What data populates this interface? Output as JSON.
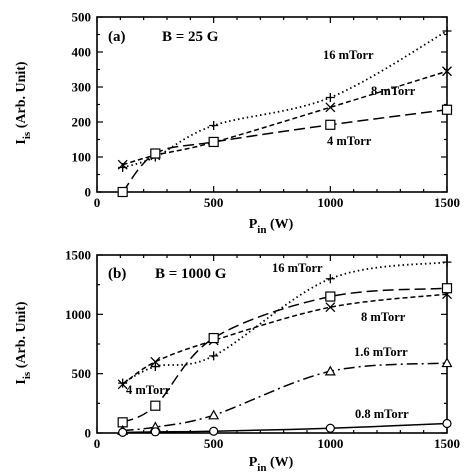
{
  "chart_data": [
    {
      "type": "line",
      "panel_label": "(a)",
      "field_label": "B = 25 G",
      "xlabel_main": "P",
      "xlabel_sub": "in",
      "xlabel_unit": " (W)",
      "ylabel_main": "I",
      "ylabel_sub": "is",
      "ylabel_unit": " (Arb. Unit)",
      "xlim": [
        0,
        1500
      ],
      "ylim": [
        0,
        500
      ],
      "xticks": [
        0,
        500,
        1000,
        1500
      ],
      "yticks": [
        0,
        100,
        200,
        300,
        400,
        500
      ],
      "series": [
        {
          "name": "16 mTorr",
          "marker": "plus",
          "dash": "dotted",
          "x": [
            110,
            250,
            500,
            1000,
            1500
          ],
          "y": [
            70,
            100,
            190,
            270,
            460
          ]
        },
        {
          "name": "8 mTorr",
          "marker": "cross",
          "dash": "short-dash",
          "x": [
            110,
            250,
            500,
            1000,
            1500
          ],
          "y": [
            78,
            105,
            142,
            242,
            345
          ]
        },
        {
          "name": "4 mTorr",
          "marker": "square",
          "dash": "long-dash",
          "x": [
            110,
            250,
            500,
            1000,
            1500
          ],
          "y": [
            0,
            110,
            143,
            192,
            235
          ]
        }
      ]
    },
    {
      "type": "line",
      "panel_label": "(b)",
      "field_label": "B = 1000 G",
      "xlabel_main": "P",
      "xlabel_sub": "in",
      "xlabel_unit": " (W)",
      "ylabel_main": "I",
      "ylabel_sub": "is",
      "ylabel_unit": " (Arb. Unit)",
      "xlim": [
        0,
        1500
      ],
      "ylim": [
        0,
        1500
      ],
      "xticks": [
        0,
        500,
        1000,
        1500
      ],
      "yticks": [
        0,
        500,
        1000,
        1500
      ],
      "series": [
        {
          "name": "16 mTorr",
          "marker": "plus",
          "dash": "dotted",
          "x": [
            110,
            250,
            500,
            1000,
            1500
          ],
          "y": [
            420,
            560,
            650,
            1300,
            1440
          ]
        },
        {
          "name": "8 mTorr",
          "marker": "cross",
          "dash": "short-dash",
          "x": [
            110,
            250,
            500,
            1000,
            1500
          ],
          "y": [
            410,
            600,
            780,
            1060,
            1170
          ]
        },
        {
          "name": "4 mTorr",
          "marker": "square",
          "dash": "long-dash",
          "x": [
            110,
            250,
            500,
            1000,
            1500
          ],
          "y": [
            90,
            230,
            800,
            1150,
            1220
          ]
        },
        {
          "name": "1.6 mTorr",
          "marker": "triangle",
          "dash": "dash-dot",
          "x": [
            110,
            250,
            500,
            1000,
            1500
          ],
          "y": [
            20,
            50,
            150,
            520,
            590
          ]
        },
        {
          "name": "0.8 mTorr",
          "marker": "circle",
          "dash": "solid",
          "x": [
            110,
            250,
            500,
            1000,
            1500
          ],
          "y": [
            5,
            10,
            15,
            40,
            80
          ]
        }
      ]
    }
  ]
}
